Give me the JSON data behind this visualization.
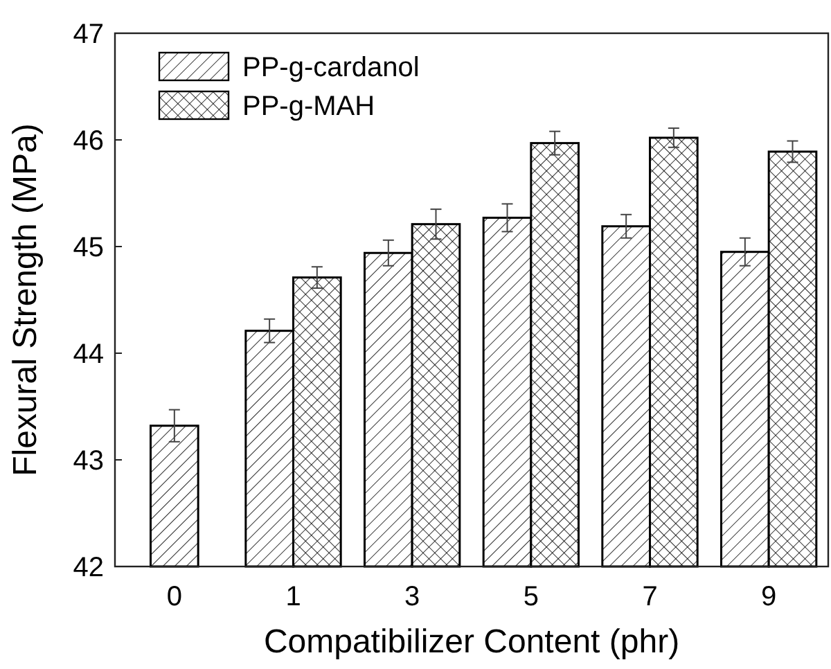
{
  "chart_data": {
    "type": "bar",
    "xlabel": "Compatibilizer Content (phr)",
    "ylabel": "Flexural Strength (MPa)",
    "categories": [
      "0",
      "1",
      "3",
      "5",
      "7",
      "9"
    ],
    "series": [
      {
        "name": "PP-g-cardanol",
        "color": "#000000",
        "values": [
          43.32,
          44.21,
          44.94,
          45.27,
          45.19,
          44.95
        ],
        "errors": [
          0.15,
          0.11,
          0.12,
          0.13,
          0.11,
          0.13
        ]
      },
      {
        "name": "PP-g-MAH",
        "color": "#000000",
        "values": [
          null,
          44.71,
          45.21,
          45.97,
          46.02,
          45.89
        ],
        "errors": [
          null,
          0.1,
          0.14,
          0.11,
          0.09,
          0.1
        ]
      }
    ],
    "ylim": [
      42,
      47
    ],
    "yticks": [
      42,
      43,
      44,
      45,
      46,
      47
    ],
    "legend": "top left",
    "grid": false
  }
}
